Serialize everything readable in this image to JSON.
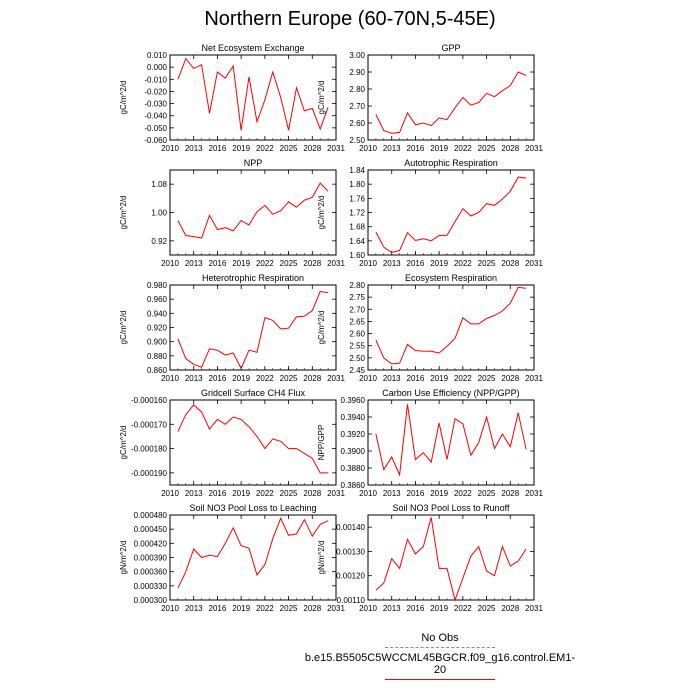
{
  "title": "Northern Europe (60-70N,5-45E)",
  "chart_data": [
    {
      "type": "line",
      "title": "Net Ecosystem Exchange",
      "ylabel": "gC/m^2/d",
      "ylim": [
        -0.06,
        0.01
      ],
      "yticks": [
        -0.06,
        -0.05,
        -0.04,
        -0.03,
        -0.02,
        -0.01,
        0.0,
        0.01
      ],
      "ytick_labels": [
        "-0.060",
        "-0.050",
        "-0.040",
        "-0.030",
        "-0.020",
        "-0.010",
        "0.000",
        "0.010"
      ],
      "xlim": [
        2010,
        2031
      ],
      "xticks": [
        2010,
        2013,
        2016,
        2019,
        2022,
        2025,
        2028,
        2031
      ],
      "x": [
        2011,
        2012,
        2013,
        2014,
        2015,
        2016,
        2017,
        2018,
        2019,
        2020,
        2021,
        2022,
        2023,
        2024,
        2025,
        2026,
        2027,
        2028,
        2029,
        2030
      ],
      "values": [
        -0.01,
        0.007,
        -0.001,
        0.002,
        -0.038,
        -0.004,
        -0.009,
        0.001,
        -0.052,
        -0.008,
        -0.045,
        -0.027,
        -0.004,
        -0.025,
        -0.052,
        -0.017,
        -0.036,
        -0.034,
        -0.051,
        -0.033
      ]
    },
    {
      "type": "line",
      "title": "GPP",
      "ylabel": "gC/m^2/d",
      "ylim": [
        2.5,
        3.0
      ],
      "yticks": [
        2.5,
        2.6,
        2.7,
        2.8,
        2.9,
        3.0
      ],
      "ytick_labels": [
        "2.50",
        "2.60",
        "2.70",
        "2.80",
        "2.90",
        "3.00"
      ],
      "xlim": [
        2010,
        2031
      ],
      "xticks": [
        2010,
        2013,
        2016,
        2019,
        2022,
        2025,
        2028,
        2031
      ],
      "x": [
        2011,
        2012,
        2013,
        2014,
        2015,
        2016,
        2017,
        2018,
        2019,
        2020,
        2021,
        2022,
        2023,
        2024,
        2025,
        2026,
        2027,
        2028,
        2029,
        2030
      ],
      "values": [
        2.65,
        2.555,
        2.54,
        2.545,
        2.66,
        2.59,
        2.6,
        2.585,
        2.63,
        2.62,
        2.69,
        2.75,
        2.705,
        2.72,
        2.775,
        2.755,
        2.79,
        2.82,
        2.9,
        2.88
      ]
    },
    {
      "type": "line",
      "title": "NPP",
      "ylabel": "gC/m^2/d",
      "ylim": [
        0.88,
        1.12
      ],
      "yticks": [
        0.92,
        1.0,
        1.08
      ],
      "ytick_labels": [
        "0.92",
        "1.00",
        "1.08"
      ],
      "xlim": [
        2010,
        2031
      ],
      "xticks": [
        2010,
        2013,
        2016,
        2019,
        2022,
        2025,
        2028,
        2031
      ],
      "x": [
        2011,
        2012,
        2013,
        2014,
        2015,
        2016,
        2017,
        2018,
        2019,
        2020,
        2021,
        2022,
        2023,
        2024,
        2025,
        2026,
        2027,
        2028,
        2029,
        2030
      ],
      "values": [
        0.977,
        0.935,
        0.932,
        0.928,
        0.992,
        0.952,
        0.957,
        0.948,
        0.977,
        0.965,
        1.002,
        1.02,
        0.995,
        1.005,
        1.03,
        1.015,
        1.035,
        1.043,
        1.083,
        1.06
      ]
    },
    {
      "type": "line",
      "title": "Autotrophic Respiration",
      "ylabel": "gC/m^2/d",
      "ylim": [
        1.6,
        1.84
      ],
      "yticks": [
        1.6,
        1.64,
        1.68,
        1.72,
        1.76,
        1.8,
        1.84
      ],
      "ytick_labels": [
        "1.60",
        "1.64",
        "1.68",
        "1.72",
        "1.76",
        "1.80",
        "1.84"
      ],
      "xlim": [
        2010,
        2031
      ],
      "xticks": [
        2010,
        2013,
        2016,
        2019,
        2022,
        2025,
        2028,
        2031
      ],
      "x": [
        2011,
        2012,
        2013,
        2014,
        2015,
        2016,
        2017,
        2018,
        2019,
        2020,
        2021,
        2022,
        2023,
        2024,
        2025,
        2026,
        2027,
        2028,
        2029,
        2030
      ],
      "values": [
        1.665,
        1.622,
        1.607,
        1.613,
        1.663,
        1.641,
        1.646,
        1.64,
        1.655,
        1.656,
        1.694,
        1.731,
        1.71,
        1.72,
        1.745,
        1.74,
        1.758,
        1.78,
        1.82,
        1.817
      ]
    },
    {
      "type": "line",
      "title": "Heterotrophic Respiration",
      "ylabel": "gC/m^2/d",
      "ylim": [
        0.86,
        0.98
      ],
      "yticks": [
        0.86,
        0.88,
        0.9,
        0.92,
        0.94,
        0.96,
        0.98
      ],
      "ytick_labels": [
        "0.860",
        "0.880",
        "0.900",
        "0.920",
        "0.940",
        "0.960",
        "0.980"
      ],
      "xlim": [
        2010,
        2031
      ],
      "xticks": [
        2010,
        2013,
        2016,
        2019,
        2022,
        2025,
        2028,
        2031
      ],
      "x": [
        2011,
        2012,
        2013,
        2014,
        2015,
        2016,
        2017,
        2018,
        2019,
        2020,
        2021,
        2022,
        2023,
        2024,
        2025,
        2026,
        2027,
        2028,
        2029,
        2030
      ],
      "values": [
        0.904,
        0.876,
        0.868,
        0.864,
        0.89,
        0.888,
        0.881,
        0.884,
        0.862,
        0.888,
        0.885,
        0.934,
        0.93,
        0.918,
        0.919,
        0.935,
        0.936,
        0.944,
        0.971,
        0.969
      ]
    },
    {
      "type": "line",
      "title": "Ecosystem Respiration",
      "ylabel": "gC/m^2/d",
      "ylim": [
        2.45,
        2.8
      ],
      "yticks": [
        2.45,
        2.5,
        2.55,
        2.6,
        2.65,
        2.7,
        2.75,
        2.8
      ],
      "ytick_labels": [
        "2.45",
        "2.50",
        "2.55",
        "2.60",
        "2.65",
        "2.70",
        "2.75",
        "2.80"
      ],
      "xlim": [
        2010,
        2031
      ],
      "xticks": [
        2010,
        2013,
        2016,
        2019,
        2022,
        2025,
        2028,
        2031
      ],
      "x": [
        2011,
        2012,
        2013,
        2014,
        2015,
        2016,
        2017,
        2018,
        2019,
        2020,
        2021,
        2022,
        2023,
        2024,
        2025,
        2026,
        2027,
        2028,
        2029,
        2030
      ],
      "values": [
        2.573,
        2.5,
        2.475,
        2.478,
        2.556,
        2.53,
        2.528,
        2.527,
        2.52,
        2.548,
        2.58,
        2.665,
        2.64,
        2.64,
        2.662,
        2.675,
        2.693,
        2.725,
        2.79,
        2.787
      ]
    },
    {
      "type": "line",
      "title": "Gridcell Surface CH4 Flux",
      "ylabel": "gC/m^2/d",
      "ylim": [
        -0.000195,
        -0.00016
      ],
      "yticks": [
        -0.00019,
        -0.00018,
        -0.00017,
        -0.00016
      ],
      "ytick_labels": [
        "-0.000190",
        "-0.000180",
        "-0.000170",
        "-0.000160"
      ],
      "xlim": [
        2010,
        2031
      ],
      "xticks": [
        2010,
        2013,
        2016,
        2019,
        2022,
        2025,
        2028,
        2031
      ],
      "x": [
        2011,
        2012,
        2013,
        2014,
        2015,
        2016,
        2017,
        2018,
        2019,
        2020,
        2021,
        2022,
        2023,
        2024,
        2025,
        2026,
        2027,
        2028,
        2029,
        2030
      ],
      "values": [
        -0.000173,
        -0.000166,
        -0.000162,
        -0.000165,
        -0.000172,
        -0.000168,
        -0.00017,
        -0.000167,
        -0.000168,
        -0.000171,
        -0.000175,
        -0.00018,
        -0.000176,
        -0.000177,
        -0.00018,
        -0.00018,
        -0.000182,
        -0.000184,
        -0.00019,
        -0.00019
      ]
    },
    {
      "type": "line",
      "title": "Carbon Use Efficiency (NPP/GPP)",
      "ylabel": "NPP/GPP",
      "ylim": [
        0.386,
        0.396
      ],
      "yticks": [
        0.386,
        0.388,
        0.39,
        0.392,
        0.394,
        0.396
      ],
      "ytick_labels": [
        "0.3860",
        "0.3880",
        "0.3900",
        "0.3920",
        "0.3940",
        "0.3960"
      ],
      "xlim": [
        2010,
        2031
      ],
      "xticks": [
        2010,
        2013,
        2016,
        2019,
        2022,
        2025,
        2028,
        2031
      ],
      "x": [
        2011,
        2012,
        2013,
        2014,
        2015,
        2016,
        2017,
        2018,
        2019,
        2020,
        2021,
        2022,
        2023,
        2024,
        2025,
        2026,
        2027,
        2028,
        2029,
        2030
      ],
      "values": [
        0.392,
        0.3878,
        0.3893,
        0.3872,
        0.3955,
        0.389,
        0.3898,
        0.3887,
        0.3933,
        0.389,
        0.3938,
        0.3932,
        0.3895,
        0.391,
        0.394,
        0.3903,
        0.392,
        0.3905,
        0.3945,
        0.3902
      ]
    },
    {
      "type": "line",
      "title": "Soil NO3 Pool Loss to Leaching",
      "ylabel": "gN/m^2/d",
      "ylim": [
        0.0003,
        0.00048
      ],
      "yticks": [
        0.0003,
        0.00033,
        0.00036,
        0.00039,
        0.00042,
        0.00045,
        0.00048
      ],
      "ytick_labels": [
        "0.000300",
        "0.000330",
        "0.000360",
        "0.000390",
        "0.000420",
        "0.000450",
        "0.000480"
      ],
      "xlim": [
        2010,
        2031
      ],
      "xticks": [
        2010,
        2013,
        2016,
        2019,
        2022,
        2025,
        2028,
        2031
      ],
      "x": [
        2011,
        2012,
        2013,
        2014,
        2015,
        2016,
        2017,
        2018,
        2019,
        2020,
        2021,
        2022,
        2023,
        2024,
        2025,
        2026,
        2027,
        2028,
        2029,
        2030
      ],
      "values": [
        0.000325,
        0.00036,
        0.000408,
        0.00039,
        0.000395,
        0.000392,
        0.00042,
        0.000453,
        0.000415,
        0.00041,
        0.000353,
        0.000375,
        0.00043,
        0.000473,
        0.000437,
        0.00044,
        0.00047,
        0.000435,
        0.00046,
        0.000468
      ]
    },
    {
      "type": "line",
      "title": "Soil NO3 Pool Loss to Runoff",
      "ylabel": "gN/m^2/d",
      "ylim": [
        0.0011,
        0.00145
      ],
      "yticks": [
        0.0011,
        0.0012,
        0.0013,
        0.0014
      ],
      "ytick_labels": [
        "0.00110",
        "0.00120",
        "0.00130",
        "0.00140"
      ],
      "xlim": [
        2010,
        2031
      ],
      "xticks": [
        2010,
        2013,
        2016,
        2019,
        2022,
        2025,
        2028,
        2031
      ],
      "x": [
        2011,
        2012,
        2013,
        2014,
        2015,
        2016,
        2017,
        2018,
        2019,
        2020,
        2021,
        2022,
        2023,
        2024,
        2025,
        2026,
        2027,
        2028,
        2029,
        2030
      ],
      "values": [
        0.00114,
        0.00117,
        0.00127,
        0.00123,
        0.00135,
        0.00129,
        0.00132,
        0.00144,
        0.00123,
        0.00123,
        0.0011,
        0.00119,
        0.00128,
        0.00132,
        0.00122,
        0.0012,
        0.00132,
        0.00124,
        0.00126,
        0.00131
      ]
    }
  ],
  "legend": {
    "entries": [
      {
        "label": "No Obs",
        "color": "#8080ff",
        "style": "dashed"
      },
      {
        "label": "b.e15.B5505C5WCCML45BGCR.f09_g16.control.EM1-20",
        "color": "#ff0000",
        "style": "solid"
      }
    ]
  },
  "colors": {
    "series": "#ff0000",
    "axes": "#000000"
  }
}
